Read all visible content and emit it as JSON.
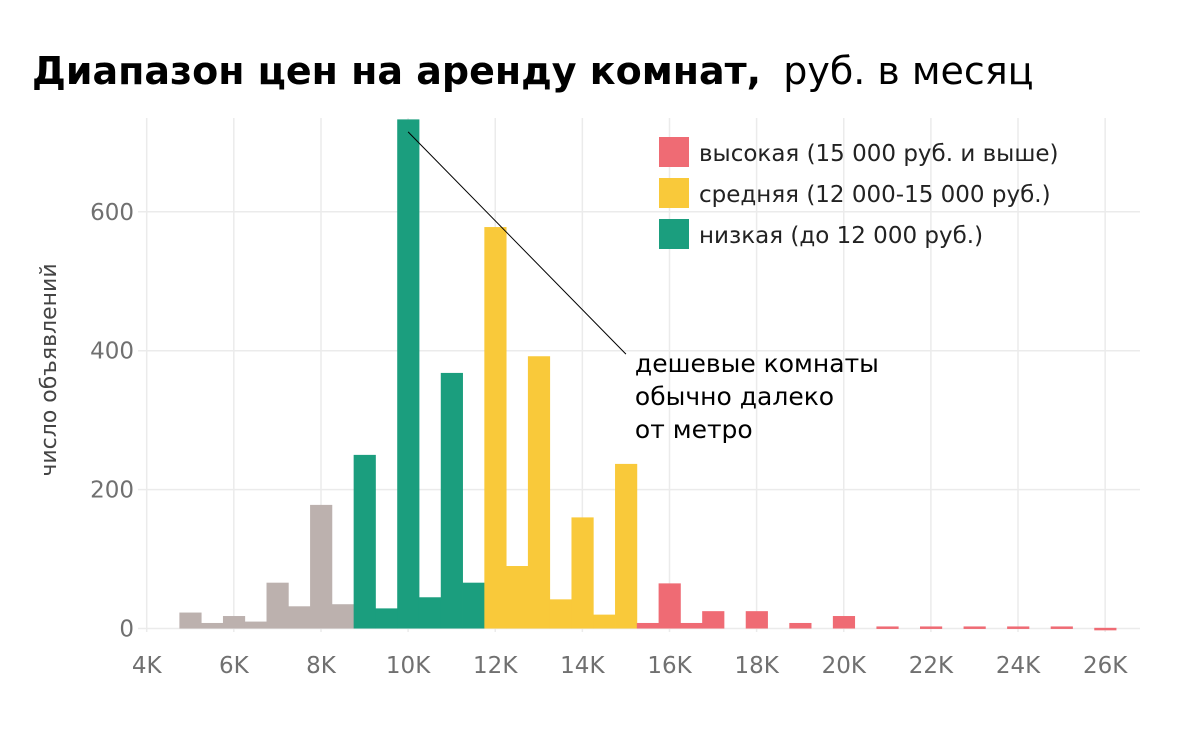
{
  "chart_data": {
    "type": "bar",
    "title": {
      "bold": "Диапазон цен на аренду комнат,",
      "normal": "руб. в месяц"
    },
    "xlabel": "",
    "ylabel": "число объявлений",
    "xlim": [
      3800,
      26800
    ],
    "ylim": [
      -5,
      735
    ],
    "bin_width": 500,
    "grid": true,
    "x_ticks": [
      {
        "value": 4000,
        "label": "4K"
      },
      {
        "value": 6000,
        "label": "6K"
      },
      {
        "value": 8000,
        "label": "8K"
      },
      {
        "value": 10000,
        "label": "10K"
      },
      {
        "value": 12000,
        "label": "12K"
      },
      {
        "value": 14000,
        "label": "14K"
      },
      {
        "value": 16000,
        "label": "16K"
      },
      {
        "value": 18000,
        "label": "18K"
      },
      {
        "value": 20000,
        "label": "20K"
      },
      {
        "value": 22000,
        "label": "22K"
      },
      {
        "value": 24000,
        "label": "24K"
      },
      {
        "value": 26000,
        "label": "26K"
      }
    ],
    "y_ticks": [
      {
        "value": 0,
        "label": "0"
      },
      {
        "value": 200,
        "label": "200"
      },
      {
        "value": 400,
        "label": "400"
      },
      {
        "value": 600,
        "label": "600"
      }
    ],
    "series": [
      {
        "key": "other",
        "color": "#bcb1ae"
      },
      {
        "key": "low",
        "color": "#1b9e7e"
      },
      {
        "key": "mid",
        "color": "#f9c93a"
      },
      {
        "key": "high",
        "color": "#ef6b74"
      }
    ],
    "bins": [
      {
        "start": 4750,
        "value": 23,
        "group": "other"
      },
      {
        "start": 5250,
        "value": 8,
        "group": "other"
      },
      {
        "start": 5750,
        "value": 18,
        "group": "other"
      },
      {
        "start": 6250,
        "value": 10,
        "group": "other"
      },
      {
        "start": 6750,
        "value": 66,
        "group": "other"
      },
      {
        "start": 7250,
        "value": 32,
        "group": "other"
      },
      {
        "start": 7750,
        "value": 178,
        "group": "other"
      },
      {
        "start": 8250,
        "value": 35,
        "group": "other"
      },
      {
        "start": 8750,
        "value": 250,
        "group": "low"
      },
      {
        "start": 9250,
        "value": 29,
        "group": "low"
      },
      {
        "start": 9750,
        "value": 733,
        "group": "low"
      },
      {
        "start": 10250,
        "value": 45,
        "group": "low"
      },
      {
        "start": 10750,
        "value": 368,
        "group": "low"
      },
      {
        "start": 11250,
        "value": 66,
        "group": "low"
      },
      {
        "start": 11750,
        "value": 578,
        "group": "mid"
      },
      {
        "start": 12250,
        "value": 90,
        "group": "mid"
      },
      {
        "start": 12750,
        "value": 392,
        "group": "mid"
      },
      {
        "start": 13250,
        "value": 42,
        "group": "mid"
      },
      {
        "start": 13750,
        "value": 160,
        "group": "mid"
      },
      {
        "start": 14250,
        "value": 20,
        "group": "mid"
      },
      {
        "start": 14750,
        "value": 237,
        "group": "mid"
      },
      {
        "start": 15250,
        "value": 8,
        "group": "high"
      },
      {
        "start": 15750,
        "value": 65,
        "group": "high"
      },
      {
        "start": 16250,
        "value": 8,
        "group": "high"
      },
      {
        "start": 16750,
        "value": 25,
        "group": "high"
      },
      {
        "start": 17750,
        "value": 25,
        "group": "high"
      },
      {
        "start": 18750,
        "value": 8,
        "group": "high"
      },
      {
        "start": 19750,
        "value": 18,
        "group": "high"
      },
      {
        "start": 20750,
        "value": 3,
        "group": "high"
      },
      {
        "start": 21750,
        "value": 3,
        "group": "high"
      },
      {
        "start": 22750,
        "value": 3,
        "group": "high"
      },
      {
        "start": 23750,
        "value": 3,
        "group": "high"
      },
      {
        "start": 24750,
        "value": 3,
        "group": "high"
      },
      {
        "start": 25750,
        "value": 1,
        "group": "high"
      }
    ],
    "legend": {
      "position": "top-right",
      "items": [
        {
          "label": "высокая (15 000 руб. и выше)",
          "color": "#ef6b74"
        },
        {
          "label": "средняя (12 000-15 000 руб.)",
          "color": "#f9c93a"
        },
        {
          "label": "низкая (до 12 000 руб.)",
          "color": "#1b9e7e"
        }
      ]
    },
    "annotation": {
      "lines": [
        "дешевые комнаты",
        "обычно далеко",
        "от метро"
      ],
      "points_to": {
        "x": 10000,
        "y": 715
      },
      "anchor": {
        "x": 15000,
        "y": 395
      }
    }
  }
}
